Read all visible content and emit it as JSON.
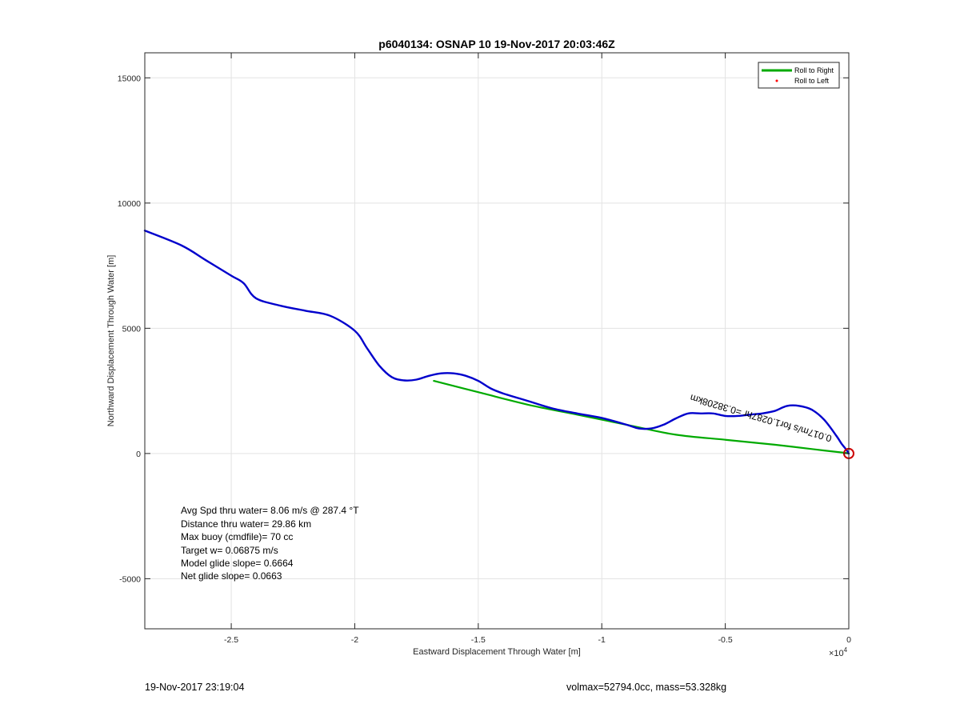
{
  "chart_data": {
    "type": "line",
    "title": "p6040134: OSNAP 10 19-Nov-2017 20:03:46Z",
    "xlabel": "Eastward Displacement Through Water [m]",
    "ylabel": "Northward Displacement Through Water [m]",
    "x_exponent_label": "×10",
    "x_exponent_power": "4",
    "xlim": [
      -2.85,
      0
    ],
    "ylim": [
      -7000,
      16000
    ],
    "xticks": [
      -2.5,
      -2,
      -1.5,
      -1,
      -0.5,
      0
    ],
    "xtick_labels": [
      "-2.5",
      "-2",
      "-1.5",
      "-1",
      "-0.5",
      "0"
    ],
    "yticks": [
      -5000,
      0,
      5000,
      10000,
      15000
    ],
    "ytick_labels": [
      "-5000",
      "0",
      "5000",
      "10000",
      "15000"
    ],
    "grid": true,
    "legend_location": "top-right",
    "legend": [
      {
        "label": "Roll to Right",
        "color": "#00aa00",
        "style": "line"
      },
      {
        "label": "Roll to Left",
        "color": "#ff0000",
        "style": "dot"
      }
    ],
    "series": [
      {
        "style": "line",
        "color": "#0000cc",
        "x": [
          -2.85,
          -2.7,
          -2.6,
          -2.5,
          -2.45,
          -2.4,
          -2.3,
          -2.2,
          -2.1,
          -2.0,
          -1.95,
          -1.9,
          -1.85,
          -1.8,
          -1.75,
          -1.7,
          -1.65,
          -1.6,
          -1.55,
          -1.5,
          -1.45,
          -1.4,
          -1.3,
          -1.2,
          -1.1,
          -1.0,
          -0.9,
          -0.85,
          -0.8,
          -0.75,
          -0.7,
          -0.65,
          -0.6,
          -0.55,
          -0.5,
          -0.45,
          -0.4,
          -0.35,
          -0.3,
          -0.25,
          -0.2,
          -0.15,
          -0.1,
          -0.05,
          -0.03,
          -0.01,
          0
        ],
        "y": [
          8900,
          8300,
          7700,
          7100,
          6800,
          6200,
          5900,
          5700,
          5500,
          4900,
          4200,
          3500,
          3050,
          2920,
          2950,
          3100,
          3200,
          3200,
          3100,
          2900,
          2600,
          2400,
          2100,
          1800,
          1600,
          1420,
          1150,
          1000,
          1000,
          1150,
          1400,
          1600,
          1600,
          1600,
          1500,
          1500,
          1550,
          1600,
          1700,
          1900,
          1900,
          1750,
          1350,
          700,
          400,
          150,
          0
        ]
      },
      {
        "style": "line",
        "color": "#00aa00",
        "x": [
          -1.68,
          -1.5,
          -1.3,
          -1.1,
          -0.9,
          -0.7,
          -0.5,
          -0.3,
          -0.1,
          -0.02,
          0
        ],
        "y": [
          2900,
          2450,
          1950,
          1550,
          1150,
          750,
          550,
          350,
          120,
          30,
          0
        ]
      }
    ],
    "end_marker": {
      "x": 0,
      "y": 0,
      "color": "#cc0000"
    },
    "annotation_rotated": "0.017m/s for1.0287hr =0.38208km",
    "text_block": [
      "Avg Spd thru water=  8.06 m/s @ 287.4 °T",
      "Distance thru water= 29.86 km",
      "Max buoy (cmdfile)= 70 cc",
      "Target w= 0.06875 m/s",
      "Model glide slope= 0.6664",
      "Net glide slope= 0.0663"
    ]
  },
  "footer": {
    "timestamp": "19-Nov-2017 23:19:04",
    "params": "volmax=52794.0cc, mass=53.328kg"
  }
}
